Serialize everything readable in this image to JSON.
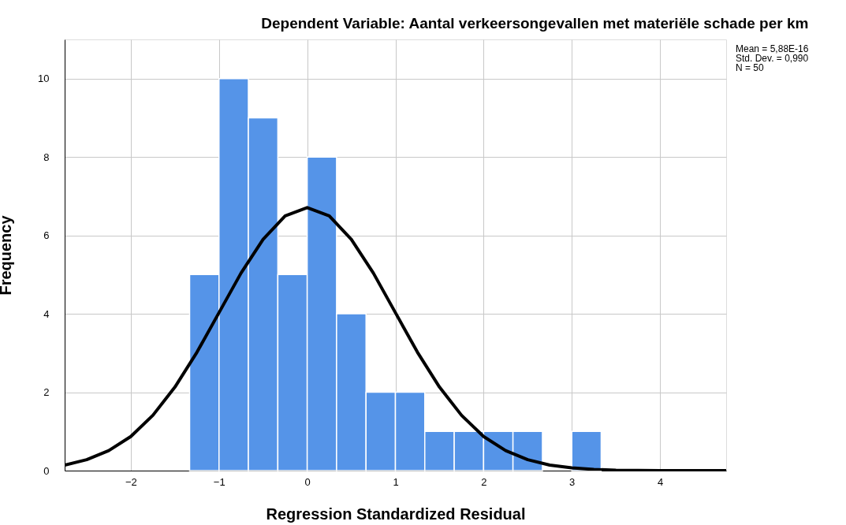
{
  "chart_data": {
    "type": "histogram",
    "title": "Dependent Variable: Aantal verkeersongevallen met materiële schade per km",
    "xlabel": "Regression Standardized Residual",
    "ylabel": "Frequency",
    "bins": [
      -1.333,
      -1.0,
      -0.667,
      -0.333,
      0.0,
      0.333,
      0.667,
      1.0,
      1.333,
      1.667,
      2.0,
      2.333,
      2.667,
      3.0,
      3.333
    ],
    "values": [
      5,
      10,
      9,
      5,
      8,
      4,
      2,
      2,
      1,
      1,
      1,
      1,
      0,
      1
    ],
    "color": "#5594e8",
    "series": [
      {
        "type": "line",
        "color": "#000000",
        "x": [
          -2.75,
          -2.5,
          -2.25,
          -2.0,
          -1.75,
          -1.5,
          -1.25,
          -1.0,
          -0.75,
          -0.5,
          -0.25,
          0.0,
          0.25,
          0.5,
          0.75,
          1.0,
          1.25,
          1.5,
          1.75,
          2.0,
          2.25,
          2.5,
          2.75,
          3.0,
          3.25,
          3.5,
          4.0,
          4.5,
          4.75
        ],
        "values": [
          0.14,
          0.28,
          0.51,
          0.87,
          1.41,
          2.13,
          3.02,
          4.03,
          5.04,
          5.9,
          6.5,
          6.71,
          6.5,
          5.9,
          5.04,
          4.03,
          3.02,
          2.13,
          1.41,
          0.87,
          0.51,
          0.28,
          0.14,
          0.07,
          0.03,
          0.01,
          0.0,
          0.0,
          0.0
        ]
      }
    ],
    "xlim": [
      -2.75,
      4.75
    ],
    "xticks": [
      -2,
      -1,
      0,
      1,
      2,
      3,
      4
    ],
    "ylim": [
      0,
      11
    ],
    "yticks": [
      0,
      2,
      4,
      6,
      8,
      10
    ],
    "grid": true,
    "annotations": [
      "Mean = 5,88E-16",
      "Std. Dev. = 0,990",
      "N = 50"
    ]
  }
}
